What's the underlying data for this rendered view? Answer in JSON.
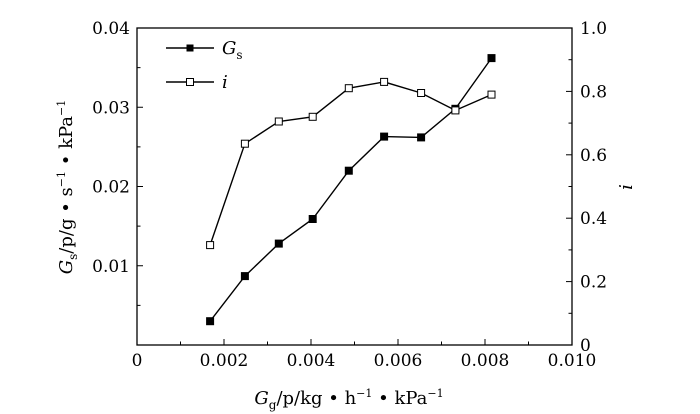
{
  "chart_data": {
    "type": "line",
    "x": [
      0.00168,
      0.00248,
      0.00326,
      0.00404,
      0.00487,
      0.00568,
      0.00653,
      0.00732,
      0.00815
    ],
    "series": [
      {
        "name": "Gs",
        "axis": "left",
        "marker": "filled-square",
        "values": [
          0.003,
          0.0087,
          0.0128,
          0.0159,
          0.022,
          0.0263,
          0.0262,
          0.0298,
          0.0362
        ]
      },
      {
        "name": "i",
        "axis": "right",
        "marker": "open-square",
        "values": [
          0.315,
          0.635,
          0.705,
          0.72,
          0.81,
          0.83,
          0.795,
          0.74,
          0.79
        ]
      }
    ],
    "xlim": [
      0,
      0.01
    ],
    "ylim_left": [
      0,
      0.04
    ],
    "ylim_right": [
      0,
      1.0
    ],
    "x_ticks": [
      "0",
      "0.002",
      "0.004",
      "0.006",
      "0.008",
      "0.010"
    ],
    "y_left_ticks": [
      "0.01",
      "0.02",
      "0.03",
      "0.04"
    ],
    "y_right_ticks": [
      "0",
      "0.2",
      "0.4",
      "0.6",
      "0.8",
      "1.0"
    ],
    "xlabel": {
      "var": "G",
      "sub": "g",
      "rest": "/p/kg • h",
      "sup1": "−1",
      "mid": " • kPa",
      "sup2": "−1"
    },
    "ylabel": {
      "var": "G",
      "sub": "s",
      "rest": "/p/g • s",
      "sup1": "−1",
      "mid": " • kPa",
      "sup2": "−1"
    },
    "ylabel_right": "i",
    "legend": {
      "placement": "top-left",
      "entries": [
        {
          "label": "G",
          "sub": "s"
        },
        {
          "label": "i",
          "sub": ""
        }
      ]
    },
    "grid": false
  }
}
